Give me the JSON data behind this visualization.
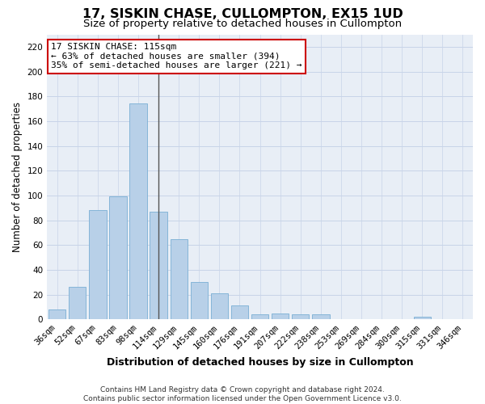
{
  "title": "17, SISKIN CHASE, CULLOMPTON, EX15 1UD",
  "subtitle": "Size of property relative to detached houses in Cullompton",
  "xlabel": "Distribution of detached houses by size in Cullompton",
  "ylabel": "Number of detached properties",
  "categories": [
    "36sqm",
    "52sqm",
    "67sqm",
    "83sqm",
    "98sqm",
    "114sqm",
    "129sqm",
    "145sqm",
    "160sqm",
    "176sqm",
    "191sqm",
    "207sqm",
    "222sqm",
    "238sqm",
    "253sqm",
    "269sqm",
    "284sqm",
    "300sqm",
    "315sqm",
    "331sqm",
    "346sqm"
  ],
  "values": [
    8,
    26,
    88,
    99,
    174,
    87,
    65,
    30,
    21,
    11,
    4,
    5,
    4,
    4,
    0,
    0,
    0,
    0,
    2,
    0,
    0
  ],
  "bar_color": "#b8d0e8",
  "bar_edge_color": "#7aafd4",
  "highlight_line_color": "#555555",
  "annotation_line1": "17 SISKIN CHASE: 115sqm",
  "annotation_line2": "← 63% of detached houses are smaller (394)",
  "annotation_line3": "35% of semi-detached houses are larger (221) →",
  "annotation_box_facecolor": "#ffffff",
  "annotation_box_edgecolor": "#cc0000",
  "ylim": [
    0,
    230
  ],
  "yticks": [
    0,
    20,
    40,
    60,
    80,
    100,
    120,
    140,
    160,
    180,
    200,
    220
  ],
  "grid_color": "#c8d4e8",
  "background_color": "#e8eef6",
  "footer_line1": "Contains HM Land Registry data © Crown copyright and database right 2024.",
  "footer_line2": "Contains public sector information licensed under the Open Government Licence v3.0.",
  "title_fontsize": 11.5,
  "subtitle_fontsize": 9.5,
  "xlabel_fontsize": 9,
  "ylabel_fontsize": 8.5,
  "tick_fontsize": 7.5,
  "annotation_fontsize": 8,
  "footer_fontsize": 6.5,
  "highlight_bar_index": 5
}
